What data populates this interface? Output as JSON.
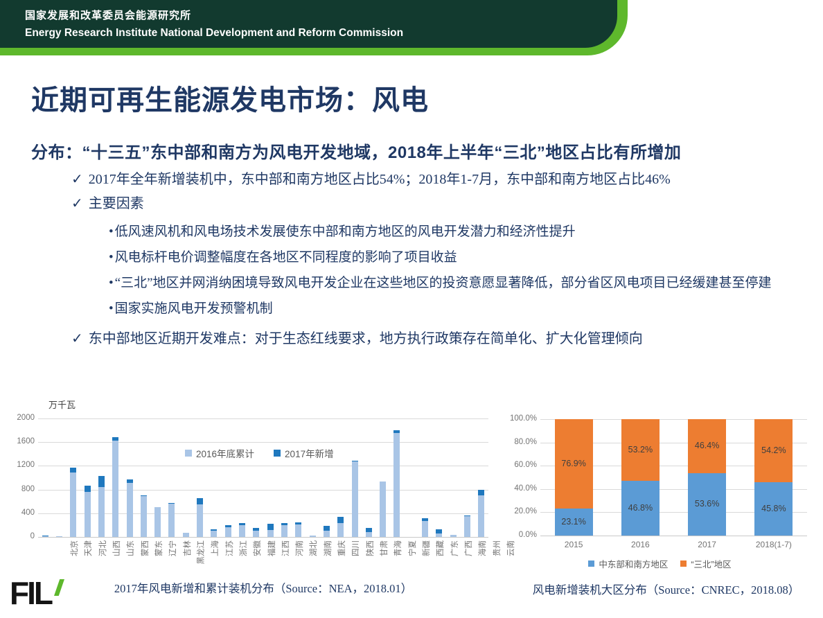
{
  "header": {
    "cn": "国家发展和改革委员会能源研究所",
    "en": "Energy Research Institute National Development and Reform Commission"
  },
  "title": "近期可再生能源发电市场：风电",
  "subtitle": "分布：“十三五”东中部和南方为风电开发地域，2018年上半年“三北”地区占比有所增加",
  "bullets": [
    {
      "level": 1,
      "marker": "✓",
      "text": "2017年全年新增装机中，东中部和南方地区占比54%；2018年1-7月，东中部和南方地区占比46%"
    },
    {
      "level": 1,
      "marker": "✓",
      "text": "主要因素"
    },
    {
      "level": 2,
      "marker": "•",
      "text": "低风速风机和风电场技术发展使东中部和南方地区的风电开发潜力和经济性提升"
    },
    {
      "level": 2,
      "marker": "•",
      "text": "风电标杆电价调整幅度在各地区不同程度的影响了项目收益"
    },
    {
      "level": 2,
      "marker": "•",
      "text": "“三北”地区并网消纳困境导致风电开发企业在这些地区的投资意愿显著降低，部分省区风电项目已经缓建甚至停建"
    },
    {
      "level": 2,
      "marker": "•",
      "text": "国家实施风电开发预警机制"
    },
    {
      "level": 1,
      "marker": "✓",
      "text": "东中部地区近期开发难点：对于生态红线要求，地方执行政策存在简单化、扩大化管理倾向"
    }
  ],
  "chart_data": [
    {
      "type": "bar",
      "stacked": true,
      "unit_label": "万千瓦",
      "ylim": [
        0,
        2000
      ],
      "yticks": [
        2000,
        1600,
        1200,
        800,
        400,
        0
      ],
      "grid": true,
      "legend_position": "inside-top-right",
      "categories": [
        "北京",
        "天津",
        "河北",
        "山西",
        "山东",
        "蒙西",
        "蒙东",
        "辽宁",
        "吉林",
        "黑龙江",
        "上海",
        "江苏",
        "浙江",
        "安徽",
        "福建",
        "江西",
        "河南",
        "湖北",
        "湖南",
        "重庆",
        "四川",
        "陕西",
        "甘肃",
        "青海",
        "宁夏",
        "新疆",
        "西藏",
        "广东",
        "广西",
        "海南",
        "贵州",
        "云南"
      ],
      "series": [
        {
          "name": "2016年底累计",
          "color": "#a9c5e6",
          "values": [
            15,
            10,
            1090,
            760,
            840,
            1630,
            915,
            695,
            500,
            560,
            70,
            550,
            105,
            165,
            200,
            105,
            120,
            200,
            210,
            20,
            100,
            230,
            1275,
            80,
            940,
            1750,
            0,
            270,
            60,
            30,
            350,
            700
          ]
        },
        {
          "name": "2017年新增",
          "color": "#1f78be",
          "values": [
            15,
            2,
            80,
            105,
            190,
            55,
            55,
            10,
            5,
            10,
            5,
            100,
            25,
            40,
            35,
            45,
            100,
            35,
            40,
            5,
            85,
            110,
            15,
            70,
            5,
            45,
            0,
            50,
            75,
            5,
            10,
            90
          ]
        }
      ],
      "caption": "2017年风电新增和累计装机分布（Source：NEA，2018.01）"
    },
    {
      "type": "bar",
      "stacked": true,
      "percent": true,
      "ylim": [
        0,
        100
      ],
      "yticks": [
        "100.0%",
        "80.0%",
        "60.0%",
        "40.0%",
        "20.0%",
        "0.0%"
      ],
      "grid": true,
      "legend_position": "bottom",
      "categories": [
        "2015",
        "2016",
        "2017",
        "2018(1-7)"
      ],
      "series": [
        {
          "name": "中东部和南方地区",
          "color": "#5b9bd5",
          "values": [
            23.1,
            46.8,
            53.6,
            45.8
          ]
        },
        {
          "name": "“三北”地区",
          "color": "#ed7d31",
          "values": [
            76.9,
            53.2,
            46.4,
            54.2
          ]
        }
      ],
      "data_labels": [
        [
          "23.1%",
          "46.8%",
          "53.6%",
          "45.8%"
        ],
        [
          "76.9%",
          "53.2%",
          "46.4%",
          "54.2%"
        ]
      ],
      "caption": "风电新增装机大区分布（Source：CNREC，2018.08）"
    }
  ],
  "logo": {
    "text": "FIL"
  },
  "colors": {
    "header_dark": "#123a2f",
    "header_green": "#5eb82c",
    "navy": "#1f3864",
    "grid": "#d9d9d9",
    "axis_text": "#737373",
    "bar_light_blue": "#a9c5e6",
    "bar_dark_blue": "#1f78be",
    "bar_blue": "#5b9bd5",
    "bar_orange": "#ed7d31"
  }
}
